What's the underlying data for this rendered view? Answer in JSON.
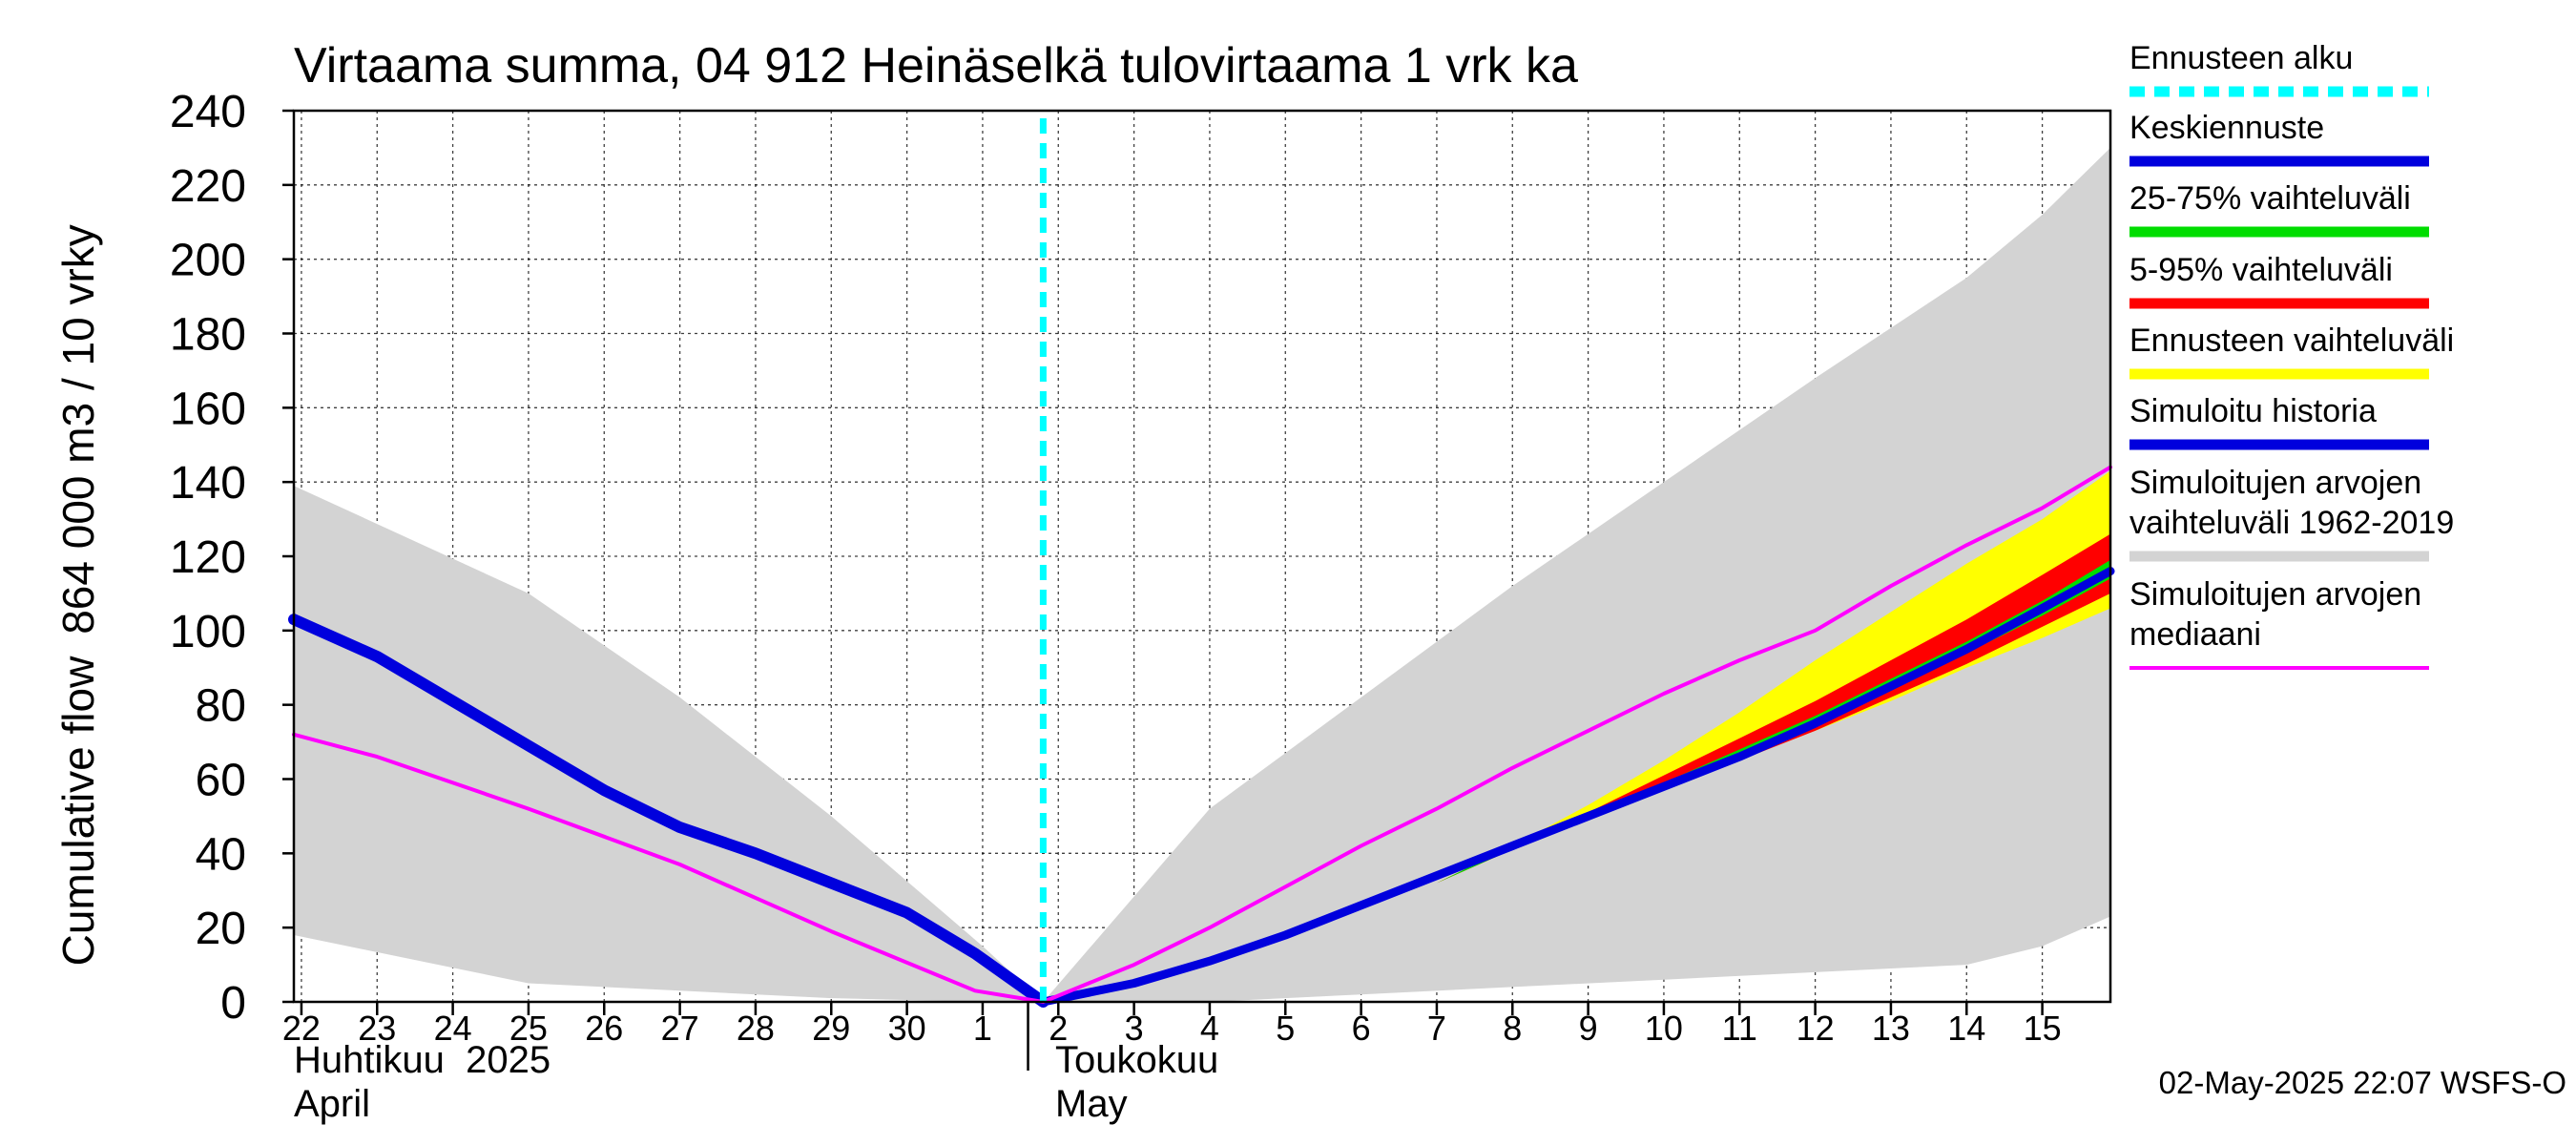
{
  "chart_data": {
    "type": "line",
    "title": "Virtaama summa, 04 912 Heinäselkä tulovirtaama 1 vrk ka",
    "ylabel_fi": "864 000 m3 / 10 vrky",
    "ylabel_en": "Cumulative flow",
    "ylim": [
      0,
      240
    ],
    "yticks": [
      0,
      20,
      40,
      60,
      80,
      100,
      120,
      140,
      160,
      180,
      200,
      220,
      240
    ],
    "xlim": [
      21.9,
      45.9
    ],
    "x_tick_positions": [
      22,
      23,
      24,
      25,
      26,
      27,
      28,
      29,
      30,
      31,
      32,
      33,
      34,
      35,
      36,
      37,
      38,
      39,
      40,
      41,
      42,
      43,
      44,
      45
    ],
    "x_tick_labels": [
      "22",
      "23",
      "24",
      "25",
      "26",
      "27",
      "28",
      "29",
      "30",
      "1",
      "2",
      "3",
      "4",
      "5",
      "6",
      "7",
      "8",
      "9",
      "10",
      "11",
      "12",
      "13",
      "14",
      "15"
    ],
    "month_labels": {
      "april_fi": "Huhtikuu  2025",
      "april_en": "April",
      "may_fi": "Toukokuu",
      "may_en": "May"
    },
    "month_boundary_x": 31.6,
    "forecast_start_x": 31.8,
    "series": [
      {
        "name": "Simuloitujen arvojen vaihteluväli 1962-2019",
        "kind": "band",
        "color": "#d3d3d3",
        "x": [
          21.9,
          25,
          27,
          29,
          31,
          31.8,
          34,
          36,
          38,
          40,
          42,
          44,
          45,
          45.9
        ],
        "upper": [
          139,
          110,
          82,
          50,
          15,
          0,
          52,
          82,
          112,
          140,
          168,
          195,
          212,
          230
        ],
        "lower": [
          18,
          5,
          3,
          1,
          0,
          0,
          0,
          2,
          4,
          6,
          8,
          10,
          15,
          23
        ]
      },
      {
        "name": "Ennusteen vaihteluväli",
        "kind": "band",
        "color": "#ffff00",
        "x": [
          31.8,
          34,
          36,
          37,
          38,
          39,
          40,
          41,
          42,
          43,
          44,
          45,
          45.9
        ],
        "upper": [
          0,
          10,
          22,
          32,
          42,
          53,
          65,
          78,
          92,
          105,
          118,
          130,
          143
        ],
        "lower": [
          0,
          10,
          22,
          32,
          41,
          49,
          58,
          66,
          73,
          81,
          90,
          98,
          106
        ]
      },
      {
        "name": "5-95% vaihteluväli",
        "kind": "band",
        "color": "#ff0000",
        "x": [
          31.8,
          34,
          36,
          37,
          38,
          39,
          40,
          41,
          42,
          43,
          44,
          45,
          45.9
        ],
        "upper": [
          0,
          10,
          22,
          32,
          42,
          51,
          61,
          71,
          81,
          92,
          103,
          115,
          126
        ],
        "lower": [
          0,
          10,
          22,
          32,
          41,
          49,
          57,
          65,
          73,
          82,
          91,
          101,
          110
        ]
      },
      {
        "name": "25-75% vaihteluväli",
        "kind": "band",
        "color": "#00dd00",
        "x": [
          31.8,
          34,
          36,
          37,
          38,
          39,
          40,
          41,
          42,
          43,
          44,
          45,
          45.9
        ],
        "upper": [
          0,
          10,
          22,
          32,
          42,
          50,
          59,
          68,
          77,
          87,
          97,
          108,
          119
        ],
        "lower": [
          0,
          10,
          22,
          32,
          41,
          49,
          58,
          67,
          75,
          84,
          94,
          104,
          114
        ]
      },
      {
        "name": "Simuloitu historia",
        "kind": "line",
        "color": "#0000dd",
        "width": 12,
        "x": [
          21.9,
          23,
          24,
          25,
          26,
          27,
          28,
          29,
          30,
          30.9,
          31.8
        ],
        "y": [
          103,
          93,
          81,
          69,
          57,
          47,
          40,
          32,
          24,
          13,
          0
        ]
      },
      {
        "name": "Keskiennuste",
        "kind": "line",
        "color": "#0000dd",
        "width": 9,
        "x": [
          31.8,
          33,
          34,
          35,
          36,
          37,
          38,
          39,
          40,
          41,
          42,
          43,
          44,
          45,
          45.9
        ],
        "y": [
          0,
          5,
          11,
          18,
          26,
          34,
          42,
          50,
          58,
          66,
          75,
          85,
          95,
          106,
          116
        ]
      },
      {
        "name": "Simuloitujen arvojen mediaani",
        "kind": "line",
        "color": "#ff00ff",
        "width": 4,
        "x": [
          21.9,
          23,
          25,
          27,
          29,
          30.9,
          31.8,
          33,
          34,
          35,
          36,
          37,
          38,
          39,
          40,
          41,
          42,
          43,
          44,
          45,
          45.9
        ],
        "y": [
          72,
          66,
          52,
          37,
          19,
          3,
          0,
          10,
          20,
          31,
          42,
          52,
          63,
          73,
          83,
          92,
          100,
          112,
          123,
          133,
          144
        ]
      }
    ],
    "legend": [
      {
        "label": "Ennusteen alku",
        "color": "#00ffff",
        "style": "dashed"
      },
      {
        "label": "Keskiennuste",
        "color": "#0000dd",
        "style": "solid"
      },
      {
        "label": "25-75% vaihteluväli",
        "color": "#00dd00",
        "style": "solid"
      },
      {
        "label": "5-95% vaihteluväli",
        "color": "#ff0000",
        "style": "solid"
      },
      {
        "label": "Ennusteen vaihteluväli",
        "color": "#ffff00",
        "style": "solid"
      },
      {
        "label": "Simuloitu historia",
        "color": "#0000dd",
        "style": "solid"
      },
      {
        "label": "Simuloitujen arvojen\nvaihteluväli 1962-2019",
        "color": "#d3d3d3",
        "style": "solid"
      },
      {
        "label": "Simuloitujen arvojen\nmediaani",
        "color": "#ff00ff",
        "style": "thin"
      }
    ],
    "footer": "02-May-2025 22:07 WSFS-O"
  }
}
